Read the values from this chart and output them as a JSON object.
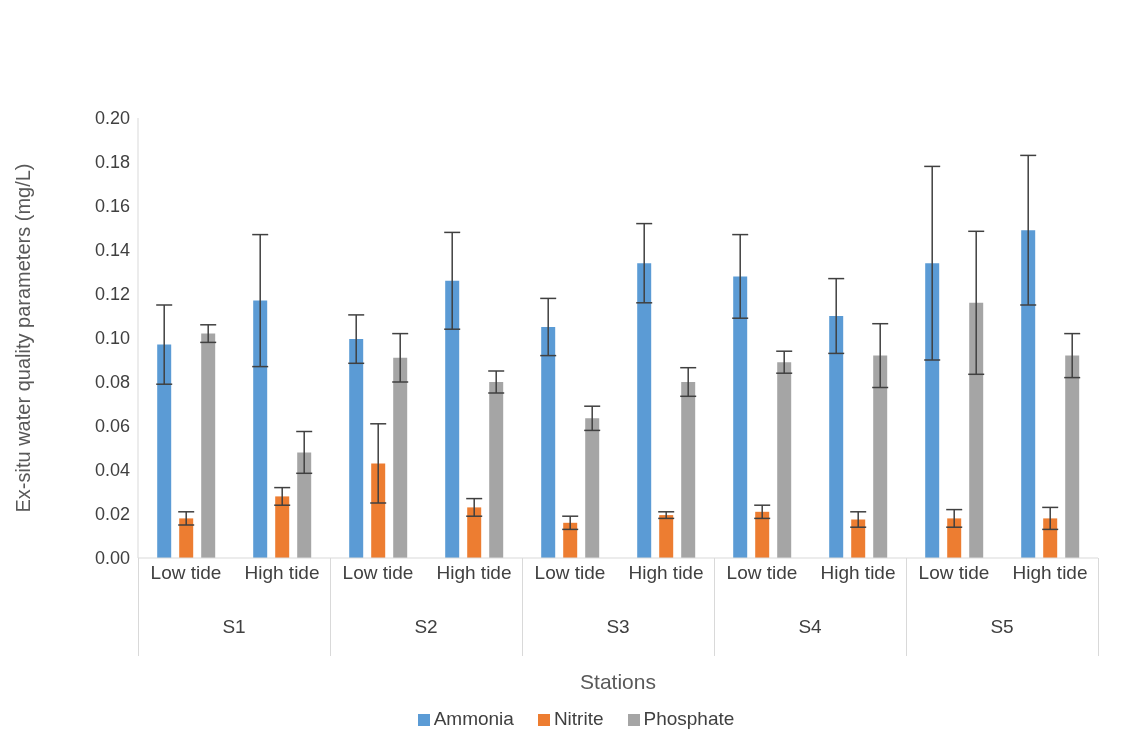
{
  "chart_data": {
    "type": "bar",
    "xlabel": "Stations",
    "ylabel": "Ex-situ water quality parameters  (mg/L)",
    "categories": [
      "Low tide",
      "High tide",
      "Low tide",
      "High tide",
      "Low tide",
      "High tide",
      "Low tide",
      "High tide",
      "Low tide",
      "High tide"
    ],
    "annotations": [
      "S1",
      "S2",
      "S3",
      "S4",
      "S5"
    ],
    "series": [
      {
        "name": "Ammonia",
        "color": "#5b9bd5",
        "values": [
          0.097,
          0.117,
          0.0995,
          0.126,
          0.105,
          0.134,
          0.128,
          0.11,
          0.134,
          0.149
        ],
        "errors": [
          0.018,
          0.03,
          0.011,
          0.022,
          0.013,
          0.018,
          0.019,
          0.017,
          0.044,
          0.034
        ]
      },
      {
        "name": "Nitrite",
        "color": "#ed7d31",
        "values": [
          0.018,
          0.028,
          0.043,
          0.023,
          0.016,
          0.0195,
          0.021,
          0.0175,
          0.018,
          0.018
        ],
        "errors": [
          0.003,
          0.004,
          0.018,
          0.004,
          0.003,
          0.0015,
          0.003,
          0.0035,
          0.004,
          0.005
        ]
      },
      {
        "name": "Phosphate",
        "color": "#a5a5a5",
        "values": [
          0.102,
          0.048,
          0.091,
          0.08,
          0.0635,
          0.08,
          0.089,
          0.092,
          0.116,
          0.092
        ],
        "errors": [
          0.004,
          0.0095,
          0.011,
          0.005,
          0.0055,
          0.0065,
          0.005,
          0.0145,
          0.0325,
          0.01
        ]
      }
    ],
    "ylim": [
      0,
      0.2
    ],
    "yticks": [
      {
        "value": 0,
        "label": "0.00"
      },
      {
        "value": 0.02,
        "label": "0.02"
      },
      {
        "value": 0.04,
        "label": "0.04"
      },
      {
        "value": 0.06,
        "label": "0.06"
      },
      {
        "value": 0.08,
        "label": "0.08"
      },
      {
        "value": 0.1,
        "label": "0.10"
      },
      {
        "value": 0.12,
        "label": "0.12"
      },
      {
        "value": 0.14,
        "label": "0.14"
      },
      {
        "value": 0.16,
        "label": "0.16"
      },
      {
        "value": 0.18,
        "label": "0.18"
      },
      {
        "value": 0.2,
        "label": "0.20"
      }
    ],
    "grid": false,
    "legend": "bottom"
  }
}
